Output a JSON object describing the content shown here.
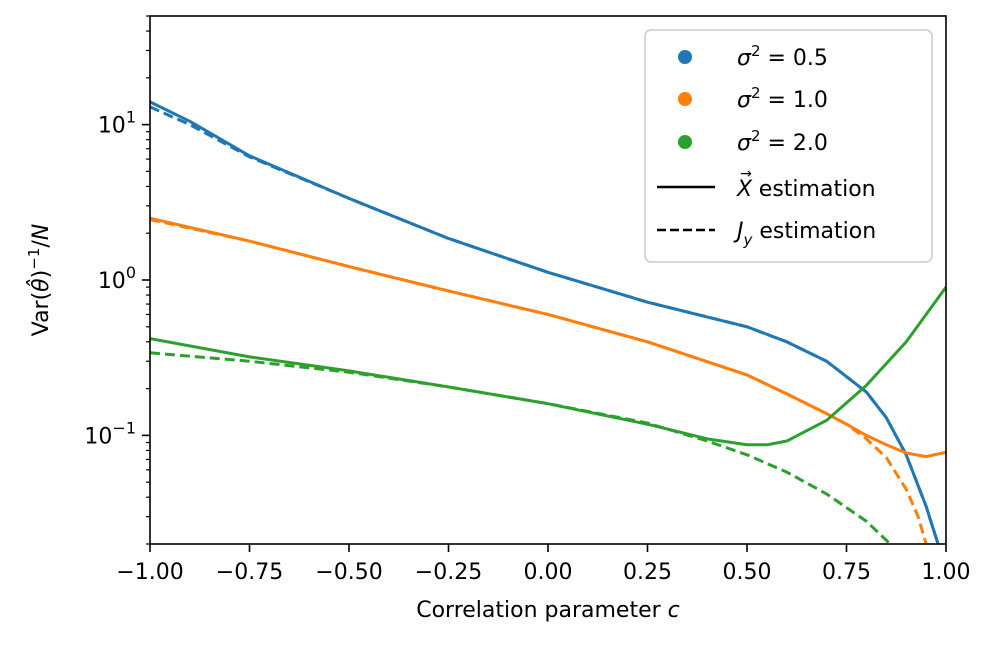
{
  "chart_data": {
    "type": "line",
    "xlabel": "Correlation parameter c",
    "ylabel": "Var(θ̂)⁻¹/N",
    "xlim": [
      -1.0,
      1.0
    ],
    "ylim": [
      0.02,
      50
    ],
    "yscale": "log",
    "x_ticks": [
      -1.0,
      -0.75,
      -0.5,
      -0.25,
      0.0,
      0.25,
      0.5,
      0.75,
      1.0
    ],
    "x_tick_labels": [
      "−1.00",
      "−0.75",
      "−0.50",
      "−0.25",
      "0.00",
      "0.25",
      "0.50",
      "0.75",
      "1.00"
    ],
    "y_ticks": [
      0.1,
      1,
      10
    ],
    "y_tick_labels": [
      {
        "base": "10",
        "exp": "−1"
      },
      {
        "base": "10",
        "exp": "0"
      },
      {
        "base": "10",
        "exp": "1"
      }
    ],
    "legend": [
      {
        "marker": "dot",
        "color": "#1f77b4",
        "label": "σ² = 0.5"
      },
      {
        "marker": "dot",
        "color": "#ff7f0e",
        "label": "σ² = 1.0"
      },
      {
        "marker": "dot",
        "color": "#2ca02c",
        "label": "σ² = 2.0"
      },
      {
        "marker": "solid",
        "color": "#000000",
        "label": "X⃗ estimation"
      },
      {
        "marker": "dashed",
        "color": "#000000",
        "label": "Jy estimation"
      }
    ],
    "legend_position": "top-right",
    "series": [
      {
        "name": "σ² = 0.5, X⃗ estimation",
        "color": "#1f77b4",
        "style": "solid",
        "x": [
          -1.0,
          -0.9,
          -0.75,
          -0.5,
          -0.25,
          0.0,
          0.25,
          0.5,
          0.6,
          0.7,
          0.8,
          0.85,
          0.9,
          0.95,
          0.98
        ],
        "y": [
          14.0,
          10.5,
          6.3,
          3.35,
          1.85,
          1.12,
          0.72,
          0.5,
          0.4,
          0.3,
          0.19,
          0.13,
          0.075,
          0.035,
          0.02
        ]
      },
      {
        "name": "σ² = 0.5, Jy estimation",
        "color": "#1f77b4",
        "style": "dashed",
        "x": [
          -1.0,
          -0.9,
          -0.75,
          -0.5,
          -0.25,
          0.0,
          0.25,
          0.5,
          0.6,
          0.7,
          0.8,
          0.85,
          0.9,
          0.95,
          0.98
        ],
        "y": [
          13.0,
          10.0,
          6.2,
          3.35,
          1.85,
          1.12,
          0.72,
          0.5,
          0.4,
          0.3,
          0.19,
          0.13,
          0.075,
          0.035,
          0.02
        ]
      },
      {
        "name": "σ² = 1.0, X⃗ estimation",
        "color": "#ff7f0e",
        "style": "solid",
        "x": [
          -1.0,
          -0.75,
          -0.5,
          -0.25,
          0.0,
          0.25,
          0.5,
          0.6,
          0.7,
          0.75,
          0.8,
          0.85,
          0.9,
          0.95,
          1.0
        ],
        "y": [
          2.5,
          1.78,
          1.22,
          0.85,
          0.6,
          0.4,
          0.245,
          0.185,
          0.138,
          0.118,
          0.1,
          0.087,
          0.077,
          0.073,
          0.078
        ]
      },
      {
        "name": "σ² = 1.0, Jy estimation",
        "color": "#ff7f0e",
        "style": "dashed",
        "x": [
          -1.0,
          -0.75,
          -0.5,
          -0.25,
          0.0,
          0.25,
          0.5,
          0.6,
          0.7,
          0.75,
          0.8,
          0.85,
          0.9,
          0.93,
          0.95
        ],
        "y": [
          2.45,
          1.78,
          1.22,
          0.85,
          0.6,
          0.4,
          0.245,
          0.185,
          0.138,
          0.118,
          0.095,
          0.072,
          0.045,
          0.03,
          0.02
        ]
      },
      {
        "name": "σ² = 2.0, X⃗ estimation",
        "color": "#2ca02c",
        "style": "solid",
        "x": [
          -1.0,
          -0.75,
          -0.5,
          -0.25,
          0.0,
          0.25,
          0.4,
          0.5,
          0.55,
          0.6,
          0.7,
          0.8,
          0.9,
          1.0
        ],
        "y": [
          0.42,
          0.32,
          0.26,
          0.205,
          0.16,
          0.118,
          0.095,
          0.087,
          0.087,
          0.092,
          0.125,
          0.21,
          0.4,
          0.9
        ]
      },
      {
        "name": "σ² = 2.0, Jy estimation",
        "color": "#2ca02c",
        "style": "dashed",
        "x": [
          -1.0,
          -0.75,
          -0.5,
          -0.25,
          0.0,
          0.25,
          0.4,
          0.5,
          0.6,
          0.7,
          0.8,
          0.86
        ],
        "y": [
          0.34,
          0.3,
          0.255,
          0.205,
          0.16,
          0.12,
          0.092,
          0.075,
          0.058,
          0.042,
          0.028,
          0.02
        ]
      }
    ]
  }
}
